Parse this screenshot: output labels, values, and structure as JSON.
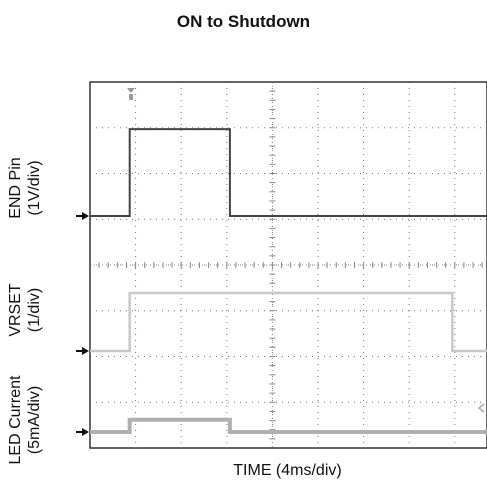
{
  "chart_data": {
    "type": "line",
    "title": "ON to Shutdown",
    "xlabel": "TIME (4ms/div)",
    "x_unit": "ms",
    "xlim": [
      0,
      40
    ],
    "grid": true,
    "divisions": {
      "x": 10,
      "y": 8
    },
    "channels": [
      {
        "label_line1": "END Pin",
        "label_line2": "(1V/div)",
        "color": "#444444",
        "x": [
          0,
          4.0,
          4.0,
          14.1,
          14.1,
          40
        ],
        "y": [
          0,
          0,
          2.2,
          2.2,
          0,
          0
        ],
        "y_unit": "V"
      },
      {
        "label_line1": "VRSET",
        "label_line2": "(1/div)",
        "color": "#c8c8c8",
        "x": [
          0,
          4.0,
          4.0,
          36.5,
          36.5,
          40
        ],
        "y": [
          0,
          0,
          1.45,
          1.45,
          0,
          0
        ],
        "y_unit": "div"
      },
      {
        "label_line1": "LED Current",
        "label_line2": "(5mA/div)",
        "color": "#b0b0b0",
        "x": [
          0,
          4.0,
          4.0,
          14.1,
          14.1,
          40
        ],
        "y": [
          0,
          0,
          4.1,
          4.1,
          0,
          0
        ],
        "y_unit": "mA"
      }
    ]
  }
}
